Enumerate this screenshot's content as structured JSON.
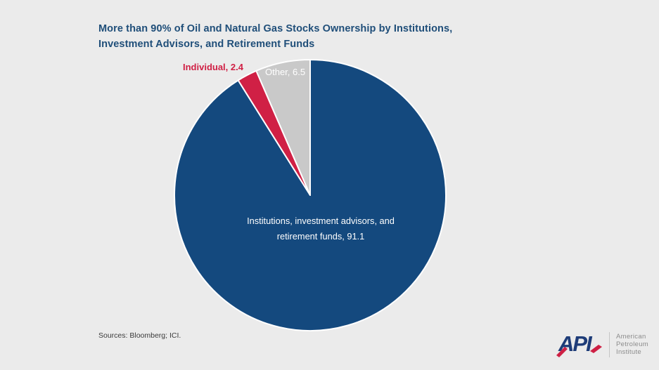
{
  "colors": {
    "background": "#EBEBEB",
    "title": "#1F4E79",
    "source": "#3A3A3A"
  },
  "title_lines": [
    "More than 90% of Oil and Natural Gas Stocks Ownership by Institutions,",
    "Investment Advisors, and Retirement Funds"
  ],
  "source_note": "Sources: Bloomberg; ICI.",
  "chart_data": {
    "type": "pie",
    "title": "More than 90% of Oil and Natural Gas Stocks Ownership by Institutions, Investment Advisors, and Retirement Funds",
    "unit": "percent",
    "start_angle_deg": 0,
    "direction": "clockwise",
    "slice_border_color": "#FFFFFF",
    "slices": [
      {
        "id": "institutions",
        "label": "Institutions, investment advisors, and retirement funds",
        "value": 91.1,
        "color": "#14497E",
        "label_text": "Institutions, investment advisors, and retirement funds, 91.1",
        "label_color": "#FFFFFF"
      },
      {
        "id": "individual",
        "label": "Individual",
        "value": 2.4,
        "color": "#D02045",
        "label_text": "Individual, 2.4",
        "label_color": "#D02045"
      },
      {
        "id": "other",
        "label": "Other",
        "value": 6.5,
        "color": "#C9C9C9",
        "label_text": "Other, 6.5",
        "label_color": "#FFFFFF"
      }
    ]
  },
  "logo": {
    "acronym": "API",
    "org_lines": [
      "American",
      "Petroleum",
      "Institute"
    ],
    "navy": "#1E3C78",
    "red": "#CE2044",
    "text_color": "#8C8C8C",
    "divider_color": "#C5C5C5"
  }
}
